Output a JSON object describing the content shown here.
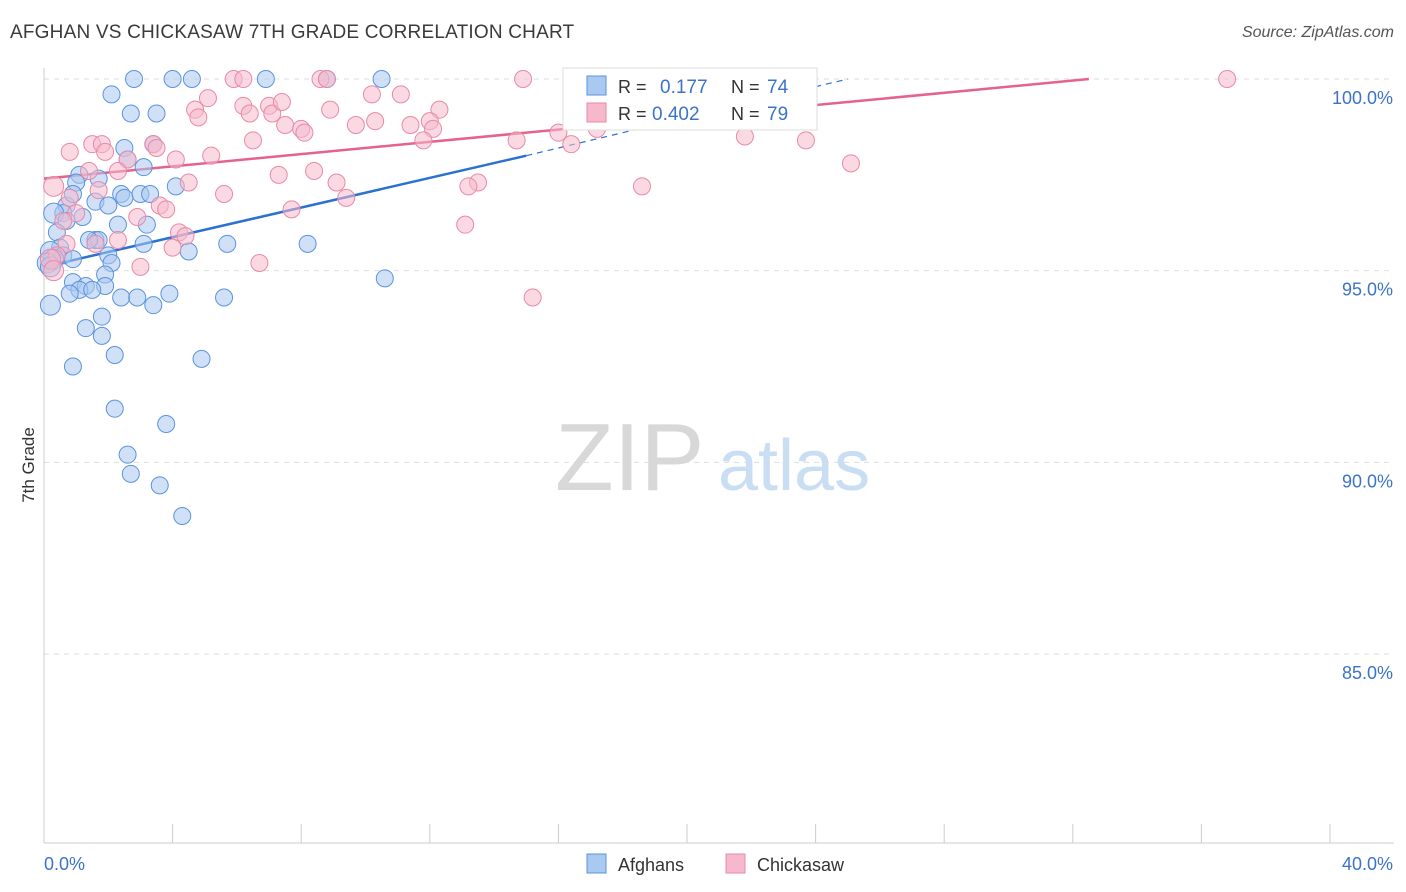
{
  "title": "AFGHAN VS CHICKASAW 7TH GRADE CORRELATION CHART",
  "source": "Source: ZipAtlas.com",
  "watermark": {
    "zip": "ZIP",
    "atlas": "atlas"
  },
  "colors": {
    "blue_fill": "#a9c9f0",
    "blue_stroke": "#5b93dd",
    "blue_line": "#2b72d0",
    "pink_fill": "#f6b9cc",
    "pink_stroke": "#e889a8",
    "pink_line": "#e5628e",
    "axis_label": "#3b73c9",
    "grid": "#dddddd"
  },
  "legend_top": {
    "rows": [
      {
        "r_label": "R =",
        "r_value": "0.177",
        "n_label": "N =",
        "n_value": "74",
        "color": "blue"
      },
      {
        "r_label": "R =",
        "r_value": "0.402",
        "n_label": "N =",
        "n_value": "79",
        "color": "pink"
      }
    ]
  },
  "legend_bottom": [
    "Afghans",
    "Chickasaw"
  ],
  "chart_data": {
    "type": "scatter",
    "title": "AFGHAN VS CHICKASAW 7TH GRADE CORRELATION CHART",
    "xlabel": "",
    "ylabel": "7th Grade",
    "xlim": [
      0,
      40
    ],
    "ylim": [
      80.5,
      100.9
    ],
    "x_tick_labels": [
      "0.0%",
      "40.0%"
    ],
    "y_ticks": [
      85,
      90,
      95,
      100
    ],
    "y_tick_labels": [
      "85.0%",
      "90.0%",
      "95.0%",
      "100.0%"
    ],
    "grid": true,
    "legend_position": "top-center",
    "series": [
      {
        "name": "Afghans",
        "r": 0.177,
        "n": 74,
        "trend": {
          "x0": 0.0,
          "y0": 95.1,
          "x1": 15.0,
          "y1": 98.0,
          "dash_x1": 25.0,
          "dash_y1": 100.0
        },
        "points": [
          [
            2.8,
            100.0
          ],
          [
            4.0,
            100.0
          ],
          [
            4.6,
            100.0
          ],
          [
            6.9,
            100.0
          ],
          [
            10.5,
            100.0
          ],
          [
            8.8,
            100.0
          ],
          [
            2.1,
            99.6
          ],
          [
            2.7,
            99.1
          ],
          [
            3.5,
            99.1
          ],
          [
            2.5,
            98.2
          ],
          [
            3.4,
            98.3
          ],
          [
            2.6,
            97.9
          ],
          [
            3.1,
            97.7
          ],
          [
            1.1,
            97.5
          ],
          [
            1.7,
            97.4
          ],
          [
            1.0,
            97.3
          ],
          [
            4.1,
            97.2
          ],
          [
            2.4,
            97.0
          ],
          [
            3.0,
            97.0
          ],
          [
            3.3,
            97.0
          ],
          [
            2.5,
            96.9
          ],
          [
            0.7,
            96.7
          ],
          [
            0.6,
            96.5
          ],
          [
            0.3,
            96.5
          ],
          [
            1.2,
            96.4
          ],
          [
            0.7,
            96.3
          ],
          [
            2.3,
            96.2
          ],
          [
            3.2,
            96.2
          ],
          [
            0.4,
            96.0
          ],
          [
            1.6,
            95.8
          ],
          [
            1.7,
            95.8
          ],
          [
            1.4,
            95.8
          ],
          [
            3.1,
            95.7
          ],
          [
            5.7,
            95.7
          ],
          [
            8.2,
            95.7
          ],
          [
            0.5,
            95.6
          ],
          [
            0.2,
            95.5
          ],
          [
            4.5,
            95.5
          ],
          [
            0.6,
            95.4
          ],
          [
            2.0,
            95.4
          ],
          [
            0.3,
            95.3
          ],
          [
            0.9,
            95.3
          ],
          [
            2.1,
            95.2
          ],
          [
            0.1,
            95.2
          ],
          [
            0.2,
            95.1
          ],
          [
            1.9,
            94.9
          ],
          [
            10.6,
            94.8
          ],
          [
            0.9,
            94.7
          ],
          [
            1.3,
            94.6
          ],
          [
            1.9,
            94.6
          ],
          [
            1.1,
            94.5
          ],
          [
            1.5,
            94.5
          ],
          [
            0.8,
            94.4
          ],
          [
            3.9,
            94.4
          ],
          [
            2.4,
            94.3
          ],
          [
            2.9,
            94.3
          ],
          [
            5.6,
            94.3
          ],
          [
            3.4,
            94.1
          ],
          [
            0.2,
            94.1
          ],
          [
            1.8,
            93.8
          ],
          [
            1.3,
            93.5
          ],
          [
            1.8,
            93.3
          ],
          [
            2.2,
            92.8
          ],
          [
            4.9,
            92.7
          ],
          [
            0.9,
            92.5
          ],
          [
            2.2,
            91.4
          ],
          [
            3.8,
            91.0
          ],
          [
            2.6,
            90.2
          ],
          [
            2.7,
            89.7
          ],
          [
            3.6,
            89.4
          ],
          [
            4.3,
            88.6
          ],
          [
            1.6,
            96.8
          ],
          [
            0.9,
            97.0
          ],
          [
            2.0,
            96.7
          ]
        ]
      },
      {
        "name": "Chickasaw",
        "r": 0.402,
        "n": 79,
        "trend": {
          "x0": 0.0,
          "y0": 97.4,
          "x1": 32.5,
          "y1": 100.0
        },
        "points": [
          [
            5.9,
            100.0
          ],
          [
            6.2,
            100.0
          ],
          [
            8.6,
            100.0
          ],
          [
            8.8,
            100.0
          ],
          [
            14.9,
            100.0
          ],
          [
            16.5,
            100.0
          ],
          [
            18.8,
            100.0
          ],
          [
            36.8,
            100.0
          ],
          [
            11.1,
            99.6
          ],
          [
            5.1,
            99.5
          ],
          [
            6.2,
            99.3
          ],
          [
            7.0,
            99.3
          ],
          [
            4.7,
            99.2
          ],
          [
            8.9,
            99.2
          ],
          [
            12.3,
            99.2
          ],
          [
            6.4,
            99.1
          ],
          [
            7.1,
            99.1
          ],
          [
            4.8,
            99.0
          ],
          [
            10.3,
            98.9
          ],
          [
            12.0,
            98.9
          ],
          [
            7.5,
            98.8
          ],
          [
            11.4,
            98.8
          ],
          [
            9.7,
            98.8
          ],
          [
            8.0,
            98.7
          ],
          [
            12.1,
            98.7
          ],
          [
            17.2,
            98.7
          ],
          [
            8.1,
            98.6
          ],
          [
            16.0,
            98.6
          ],
          [
            21.8,
            98.5
          ],
          [
            11.8,
            98.4
          ],
          [
            6.5,
            98.4
          ],
          [
            23.7,
            98.4
          ],
          [
            16.4,
            98.3
          ],
          [
            1.5,
            98.3
          ],
          [
            1.8,
            98.3
          ],
          [
            3.4,
            98.3
          ],
          [
            3.5,
            98.2
          ],
          [
            0.8,
            98.1
          ],
          [
            1.9,
            98.1
          ],
          [
            5.2,
            98.0
          ],
          [
            2.6,
            97.9
          ],
          [
            4.1,
            97.9
          ],
          [
            25.1,
            97.8
          ],
          [
            1.4,
            97.6
          ],
          [
            2.3,
            97.6
          ],
          [
            8.4,
            97.6
          ],
          [
            7.3,
            97.5
          ],
          [
            9.1,
            97.3
          ],
          [
            4.5,
            97.3
          ],
          [
            13.5,
            97.3
          ],
          [
            0.3,
            97.2
          ],
          [
            18.6,
            97.2
          ],
          [
            1.7,
            97.1
          ],
          [
            13.2,
            97.2
          ],
          [
            9.4,
            96.9
          ],
          [
            5.6,
            97.0
          ],
          [
            0.8,
            96.9
          ],
          [
            3.6,
            96.7
          ],
          [
            3.8,
            96.6
          ],
          [
            7.7,
            96.6
          ],
          [
            1.0,
            96.5
          ],
          [
            2.9,
            96.4
          ],
          [
            0.6,
            96.3
          ],
          [
            13.1,
            96.2
          ],
          [
            4.2,
            96.0
          ],
          [
            4.4,
            95.9
          ],
          [
            2.3,
            95.8
          ],
          [
            0.7,
            95.7
          ],
          [
            4.0,
            95.6
          ],
          [
            1.6,
            95.7
          ],
          [
            0.4,
            95.4
          ],
          [
            0.2,
            95.3
          ],
          [
            6.7,
            95.2
          ],
          [
            3.0,
            95.1
          ],
          [
            0.3,
            95.0
          ],
          [
            15.2,
            94.3
          ],
          [
            10.2,
            99.6
          ],
          [
            14.7,
            98.4
          ],
          [
            7.4,
            99.4
          ]
        ]
      }
    ]
  }
}
